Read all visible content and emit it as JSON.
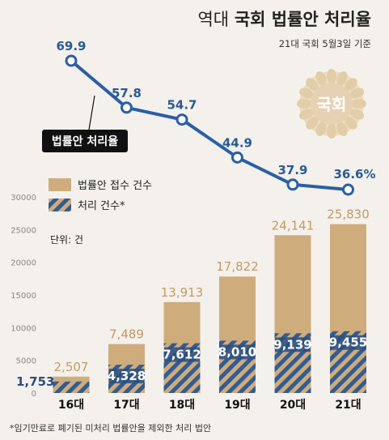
{
  "header": {
    "title_prefix": "역대",
    "title_main": "국회 법률안 처리율",
    "subtitle": "21대 국회 5월3일 기준"
  },
  "footnote": "*임기만료로 폐기된 미처리 법률안을 제외한 처리 법안",
  "emblem_text": "국회",
  "colors": {
    "background": "#f4f1ec",
    "submitted_bar": "#cfac7c",
    "processed_bar": "#325c92",
    "line": "#2a5fa8",
    "label_box": "#111111",
    "emblem": "#ecdcc2"
  },
  "chart_data": [
    {
      "type": "line",
      "name": "법률안 처리율",
      "categories": [
        "16대",
        "17대",
        "18대",
        "19대",
        "20대",
        "21대"
      ],
      "values": [
        69.9,
        57.8,
        54.7,
        44.9,
        37.9,
        36.6
      ],
      "value_labels": [
        "69.9",
        "57.8",
        "54.7",
        "44.9",
        "37.9",
        "36.6%"
      ],
      "label": "법률안 처리율"
    },
    {
      "type": "bar",
      "categories": [
        "16대",
        "17대",
        "18대",
        "19대",
        "20대",
        "21대"
      ],
      "series": [
        {
          "name": "법률안 접수 건수",
          "values": [
            2507,
            7489,
            13913,
            17822,
            24141,
            25830
          ],
          "labels": [
            "2,507",
            "7,489",
            "13,913",
            "17,822",
            "24,141",
            "25,830"
          ]
        },
        {
          "name": "처리 건수*",
          "values": [
            1753,
            4328,
            7612,
            8010,
            9139,
            9455
          ],
          "labels": [
            "1,753",
            "4,328",
            "7,612",
            "8,010",
            "9,139",
            "9,455"
          ]
        }
      ],
      "ylim": [
        0,
        30000
      ],
      "yticks": [
        0,
        5000,
        10000,
        15000,
        20000,
        25000,
        30000
      ],
      "ytick_labels": [
        "0",
        "5000",
        "10000",
        "15000",
        "20000",
        "25000",
        "30000"
      ],
      "unit_label": "단위: 건",
      "grid": false,
      "legend_position": "top-left"
    }
  ]
}
